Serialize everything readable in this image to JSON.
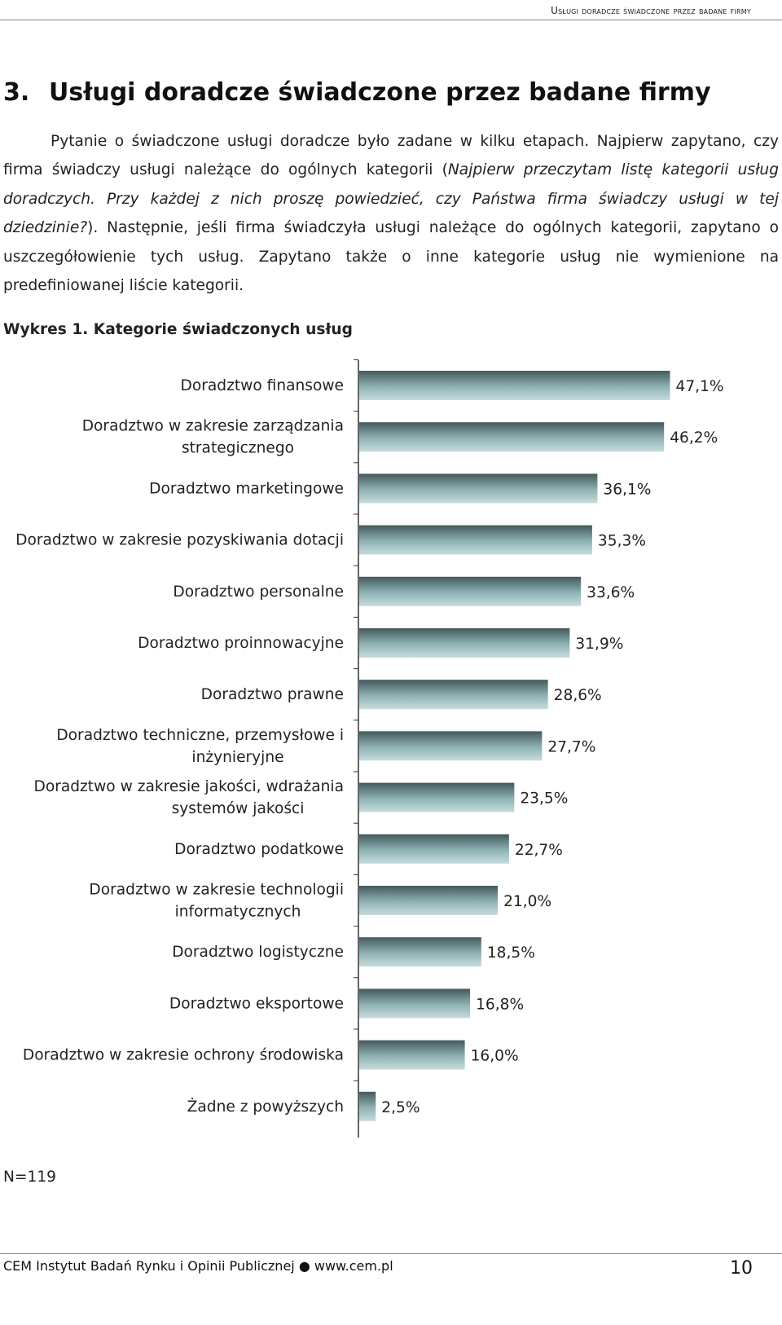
{
  "header": {
    "running_title": "Usługi doradcze świadczone przez badane firmy"
  },
  "section": {
    "number": "3.",
    "title": "Usługi doradcze świadczone przez badane firmy"
  },
  "paragraph": {
    "part1": "Pytanie o świadczone usługi doradcze było zadane w kilku etapach. Najpierw zapytano, czy firma świadczy usługi należące do ogólnych kategorii (",
    "part2_italic": "Najpierw przeczytam listę kategorii usług doradczych. Przy każdej z nich proszę powiedzieć, czy Państwa firma świadczy usługi w tej dziedzinie?",
    "part3": "). Następnie, jeśli firma świadczyła usługi należące do ogólnych kategorii, zapytano o uszczegółowienie tych usług. Zapytano także o inne kategorie usług nie wymienione na predefiniowanej liście kategorii."
  },
  "figure": {
    "caption": "Wykres 1. Kategorie świadczonych usług",
    "note": "N=119"
  },
  "chart_data": {
    "type": "bar",
    "orientation": "horizontal",
    "categories": [
      "Doradztwo finansowe",
      "Doradztwo w zakresie zarządzania strategicznego",
      "Doradztwo marketingowe",
      "Doradztwo w zakresie pozyskiwania dotacji",
      "Doradztwo personalne",
      "Doradztwo proinnowacyjne",
      "Doradztwo prawne",
      "Doradztwo techniczne, przemysłowe i inżynieryjne",
      "Doradztwo w zakresie jakości, wdrażania systemów jakości",
      "Doradztwo podatkowe",
      "Doradztwo w zakresie technologii informatycznych",
      "Doradztwo logistyczne",
      "Doradztwo eksportowe",
      "Doradztwo w zakresie ochrony środowiska",
      "Żadne z powyższych"
    ],
    "category_lines": [
      [
        "Doradztwo finansowe"
      ],
      [
        "Doradztwo w zakresie zarządzania",
        "strategicznego"
      ],
      [
        "Doradztwo marketingowe"
      ],
      [
        "Doradztwo w zakresie pozyskiwania dotacji"
      ],
      [
        "Doradztwo personalne"
      ],
      [
        "Doradztwo proinnowacyjne"
      ],
      [
        "Doradztwo prawne"
      ],
      [
        "Doradztwo techniczne, przemysłowe i",
        "inżynieryjne"
      ],
      [
        "Doradztwo w zakresie jakości, wdrażania",
        "systemów jakości"
      ],
      [
        "Doradztwo podatkowe"
      ],
      [
        "Doradztwo w zakresie technologii",
        "informatycznych"
      ],
      [
        "Doradztwo logistyczne"
      ],
      [
        "Doradztwo eksportowe"
      ],
      [
        "Doradztwo w zakresie ochrony środowiska"
      ],
      [
        "Żadne z powyższych"
      ]
    ],
    "values": [
      47.1,
      46.2,
      36.1,
      35.3,
      33.6,
      31.9,
      28.6,
      27.7,
      23.5,
      22.7,
      21.0,
      18.5,
      16.8,
      16.0,
      2.5
    ],
    "value_labels": [
      "47,1%",
      "46,2%",
      "36,1%",
      "35,3%",
      "33,6%",
      "31,9%",
      "28,6%",
      "27,7%",
      "23,5%",
      "22,7%",
      "21,0%",
      "18,5%",
      "16,8%",
      "16,0%",
      "2,5%"
    ],
    "unit": "%",
    "grid": false,
    "legend": "none",
    "bar_gradient": [
      "#43595c",
      "#8fb3b5",
      "#c8dcdc"
    ]
  },
  "footer": {
    "left": "CEM Instytut Badań Rynku i Opinii Publicznej ● www.cem.pl",
    "page_number": "10"
  }
}
